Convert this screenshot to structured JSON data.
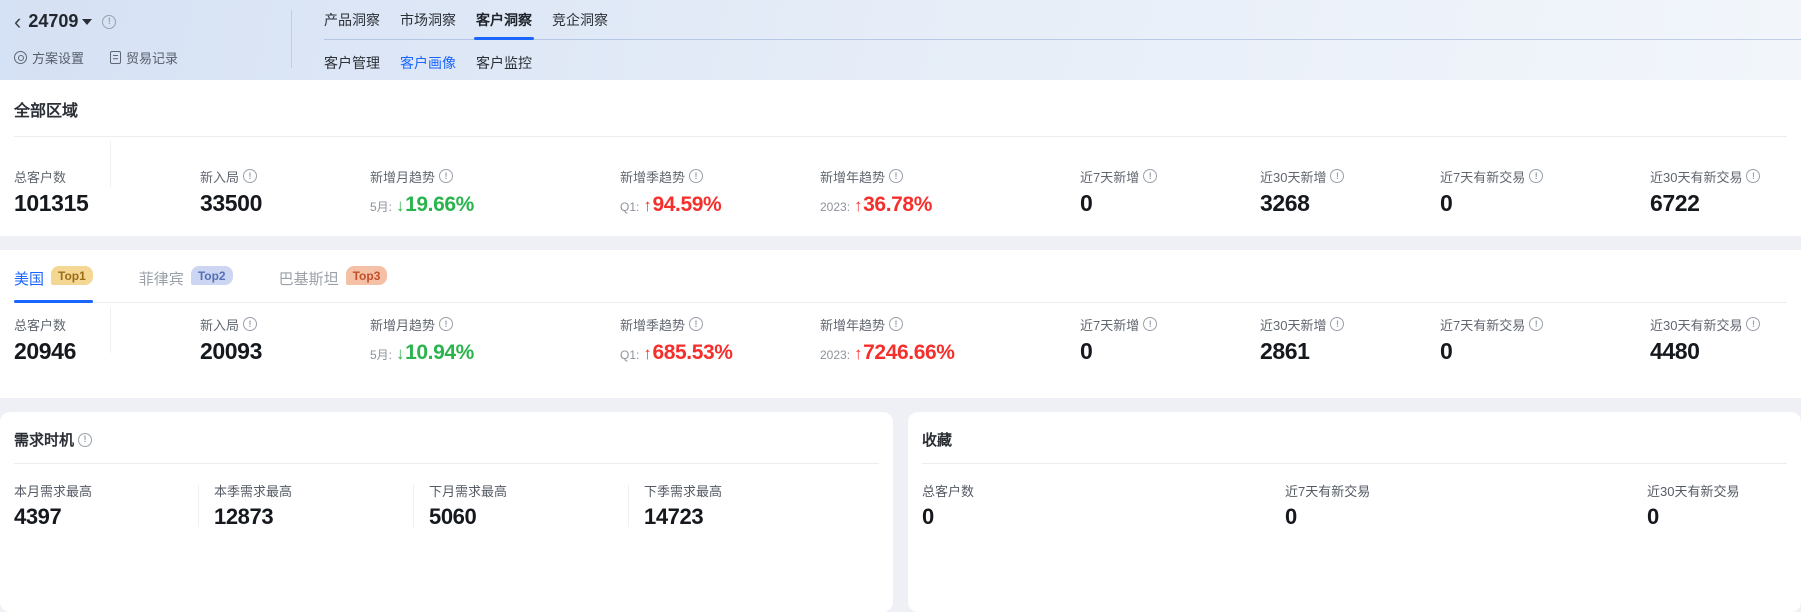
{
  "header": {
    "back_glyph": "‹",
    "plan_id": "24709",
    "actions": [
      {
        "label": "方案设置",
        "icon": "gear-icon"
      },
      {
        "label": "贸易记录",
        "icon": "document-icon"
      }
    ],
    "tabs": [
      "产品洞察",
      "市场洞察",
      "客户洞察",
      "竞企洞察"
    ],
    "active_tab": "客户洞察",
    "subtabs": [
      "客户管理",
      "客户画像",
      "客户监控"
    ],
    "active_subtab": "客户画像"
  },
  "all_region": {
    "title": "全部区域",
    "metrics": [
      {
        "label": "总客户数",
        "info": false,
        "value": "101315"
      },
      {
        "label": "新入局",
        "info": true,
        "value": "33500"
      },
      {
        "label": "新增月趋势",
        "info": true,
        "trend": {
          "prefix": "5月:",
          "dir": "down",
          "pct": "19.66%",
          "tone": "green"
        }
      },
      {
        "label": "新增季趋势",
        "info": true,
        "trend": {
          "prefix": "Q1:",
          "dir": "up",
          "pct": "94.59%",
          "tone": "red"
        }
      },
      {
        "label": "新增年趋势",
        "info": true,
        "trend": {
          "prefix": "2023:",
          "dir": "up",
          "pct": "36.78%",
          "tone": "red"
        }
      },
      {
        "label": "近7天新增",
        "info": true,
        "value": "0"
      },
      {
        "label": "近30天新增",
        "info": true,
        "value": "3268"
      },
      {
        "label": "近7天有新交易",
        "info": true,
        "value": "0"
      },
      {
        "label": "近30天有新交易",
        "info": true,
        "value": "6722"
      }
    ]
  },
  "country": {
    "tabs": [
      {
        "name": "美国",
        "badge": "Top1"
      },
      {
        "name": "菲律宾",
        "badge": "Top2"
      },
      {
        "name": "巴基斯坦",
        "badge": "Top3"
      }
    ],
    "active": "美国",
    "metrics": [
      {
        "label": "总客户数",
        "info": false,
        "value": "20946"
      },
      {
        "label": "新入局",
        "info": true,
        "value": "20093"
      },
      {
        "label": "新增月趋势",
        "info": true,
        "trend": {
          "prefix": "5月:",
          "dir": "down",
          "pct": "10.94%",
          "tone": "green"
        }
      },
      {
        "label": "新增季趋势",
        "info": true,
        "trend": {
          "prefix": "Q1:",
          "dir": "up",
          "pct": "685.53%",
          "tone": "red"
        }
      },
      {
        "label": "新增年趋势",
        "info": true,
        "trend": {
          "prefix": "2023:",
          "dir": "up",
          "pct": "7246.66%",
          "tone": "red"
        }
      },
      {
        "label": "近7天新增",
        "info": true,
        "value": "0"
      },
      {
        "label": "近30天新增",
        "info": true,
        "value": "2861"
      },
      {
        "label": "近7天有新交易",
        "info": true,
        "value": "0"
      },
      {
        "label": "近30天有新交易",
        "info": true,
        "value": "4480"
      }
    ]
  },
  "demand": {
    "title": "需求时机",
    "title_info": true,
    "metrics": [
      {
        "label": "本月需求最高",
        "value": "4397"
      },
      {
        "label": "本季需求最高",
        "value": "12873"
      },
      {
        "label": "下月需求最高",
        "value": "5060"
      },
      {
        "label": "下季需求最高",
        "value": "14723"
      }
    ]
  },
  "favorites": {
    "title": "收藏",
    "metrics": [
      {
        "label": "总客户数",
        "value": "0"
      },
      {
        "label": "近7天有新交易",
        "value": "0"
      },
      {
        "label": "近30天有新交易",
        "value": "0"
      }
    ]
  },
  "icons": {
    "up": "↑",
    "down": "↓",
    "info": "!"
  },
  "colors": {
    "accent": "#1b66ff",
    "green": "#2ab44e",
    "red": "#f5302c",
    "badges": [
      {
        "bg": "#f5d794",
        "fg": "#9a6c16"
      },
      {
        "bg": "#ccd6f3",
        "fg": "#5570b4"
      },
      {
        "bg": "#f4c0a6",
        "fg": "#c2502b"
      }
    ]
  }
}
